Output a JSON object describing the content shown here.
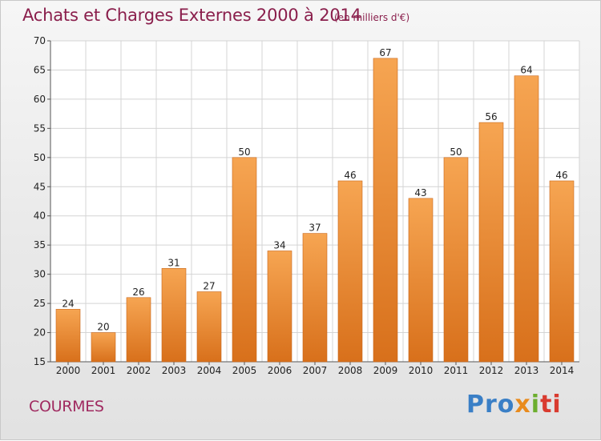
{
  "chart_data": {
    "type": "bar",
    "title": "Achats et Charges Externes 2000 à 2014",
    "subtitle": "(en milliers d'€)",
    "categories": [
      "2000",
      "2001",
      "2002",
      "2003",
      "2004",
      "2005",
      "2006",
      "2007",
      "2008",
      "2009",
      "2010",
      "2011",
      "2012",
      "2013",
      "2014"
    ],
    "values": [
      24,
      20,
      26,
      31,
      27,
      50,
      34,
      37,
      46,
      67,
      43,
      50,
      56,
      64,
      46
    ],
    "ylim": [
      15,
      70
    ],
    "yticks": [
      15,
      20,
      25,
      30,
      35,
      40,
      45,
      50,
      55,
      60,
      65,
      70
    ],
    "grid": true,
    "bar_color": "#f0973a",
    "xlabel": "",
    "ylabel": ""
  },
  "footer": {
    "commune": "COURMES",
    "logo_parts": [
      "Pro",
      "x",
      "i",
      "ti"
    ]
  }
}
